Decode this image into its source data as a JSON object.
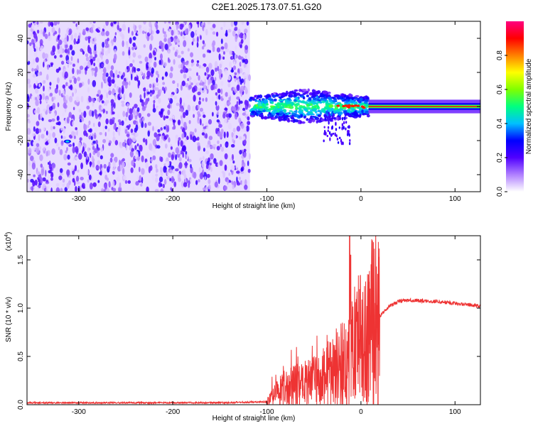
{
  "title": "C2E1.2025.173.07.51.G20",
  "chart_data": [
    {
      "type": "heatmap",
      "xlabel": "Height of straight line (km)",
      "ylabel": "Frequency (Hz)",
      "xlim": [
        -355,
        127
      ],
      "ylim": [
        -50,
        50
      ],
      "xticks": [
        -300,
        -200,
        -100,
        0,
        100
      ],
      "yticks": [
        -40,
        -20,
        0,
        20,
        40
      ],
      "colorbar": {
        "label": "Normalized spectral amplitude",
        "range": [
          0,
          1
        ],
        "ticks": [
          "0.0",
          "0.2",
          "0.4",
          "0.6",
          "0.8"
        ],
        "colors": [
          "#ffffff",
          "#b080ff",
          "#5000ff",
          "#0000ff",
          "#00c0ff",
          "#00ff80",
          "#80ff00",
          "#ffff00",
          "#ff8000",
          "#ff0000",
          "#ff0080"
        ]
      },
      "regions": [
        {
          "x_range": [
            -355,
            -118
          ],
          "freq_range": [
            -50,
            50
          ],
          "description": "noise",
          "amplitude": 0.12
        },
        {
          "x_range": [
            -118,
            8
          ],
          "freq_range": [
            -8,
            8
          ],
          "description": "signal band",
          "amplitude": 0.5
        },
        {
          "x_range": [
            8,
            127
          ],
          "freq_range": [
            -2,
            2
          ],
          "description": "steady carrier",
          "amplitude": 0.6
        }
      ]
    },
    {
      "type": "line",
      "xlabel": "Height of straight line (km)",
      "ylabel": "SNR (10 * v/v)",
      "ymultiplier": "(x10",
      "ymultiplier_exp": "4",
      "ymultiplier_close": ")",
      "xlim": [
        -355,
        127
      ],
      "ylim": [
        0,
        1.75
      ],
      "xticks": [
        -300,
        -200,
        -100,
        0,
        100
      ],
      "yticks": [
        "0.0",
        "0.5",
        "1.0",
        "1.5"
      ],
      "series": [
        {
          "color": "#ee3333",
          "x": [
            -355,
            -300,
            -250,
            -200,
            -150,
            -100,
            -90,
            -80,
            -70,
            -60,
            -50,
            -40,
            -30,
            -20,
            -15,
            -10,
            0,
            10,
            20,
            30,
            40,
            50,
            60,
            70,
            80,
            90,
            100,
            110,
            120,
            127
          ],
          "y": [
            0.02,
            0.02,
            0.02,
            0.02,
            0.02,
            0.03,
            0.12,
            0.18,
            0.2,
            0.22,
            0.24,
            0.28,
            0.35,
            0.42,
            0.4,
            0.55,
            0.65,
            0.78,
            0.92,
            1.02,
            1.07,
            1.08,
            1.08,
            1.07,
            1.07,
            1.06,
            1.05,
            1.04,
            1.03,
            1.02
          ]
        }
      ]
    }
  ]
}
